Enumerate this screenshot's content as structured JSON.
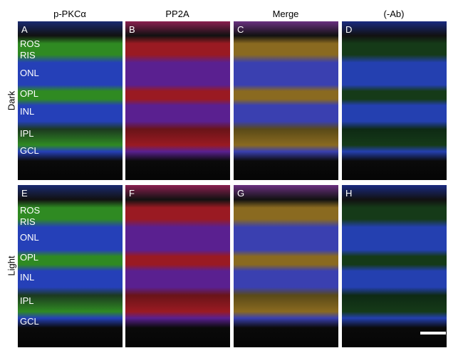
{
  "column_headers": [
    "p-PKCα",
    "PP2A",
    "Merge",
    "(-Ab)"
  ],
  "row_labels": [
    "Dark",
    "Light"
  ],
  "panels": [
    [
      "A",
      "B",
      "C",
      "D"
    ],
    [
      "E",
      "F",
      "G",
      "H"
    ]
  ],
  "layer_labels": [
    [
      "ROS",
      "RIS",
      "ONL",
      "OPL",
      "INL",
      "IPL",
      "GCL"
    ],
    [
      "ROS",
      "RIS",
      "ONL",
      "OPL",
      "INL",
      "IPL",
      "GCL"
    ]
  ]
}
